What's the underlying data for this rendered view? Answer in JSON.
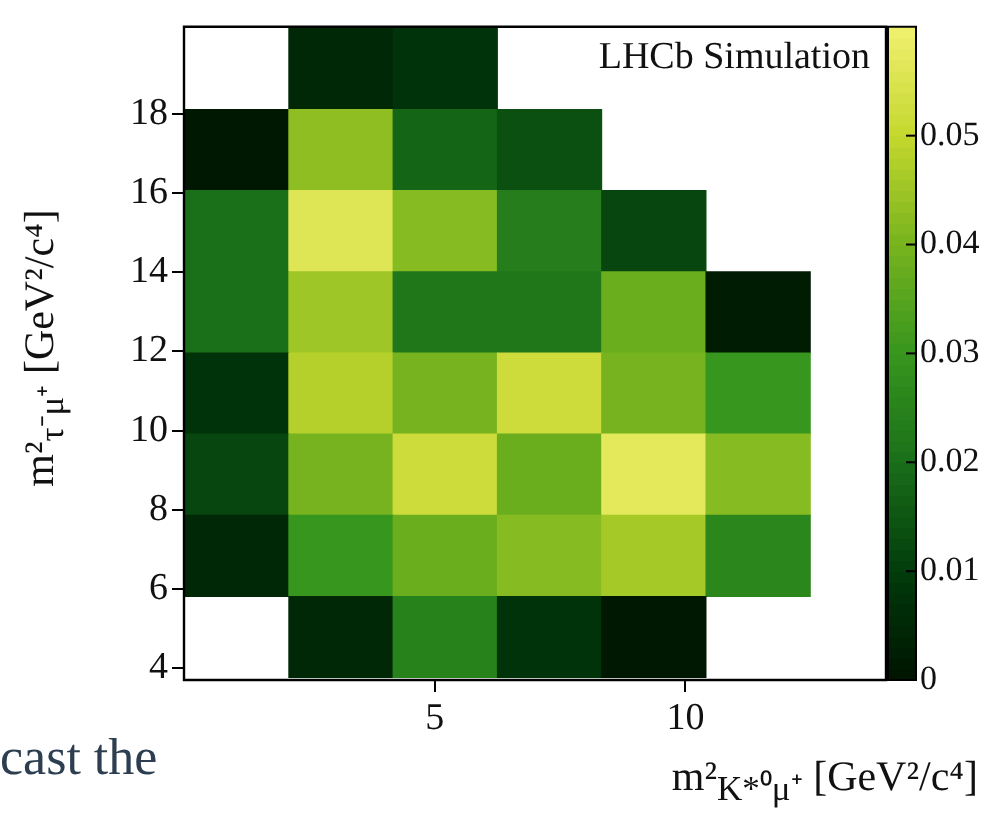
{
  "chart_data": {
    "type": "heatmap",
    "xlabel": "m²$_{K*⁰μ⁺}$ [GeV²/c⁴]",
    "ylabel": "m²$_{τ⁻μ⁺}$ [GeV²/c⁴]",
    "annotations": [
      "LHCb Simulation",
      "cast the"
    ],
    "x": [
      1.04,
      3.12,
      5.2,
      7.28,
      9.36,
      11.44
    ],
    "y": [
      19.15,
      17.1,
      15.05,
      13.0,
      10.95,
      8.9,
      6.85,
      4.8
    ],
    "cells": [
      [
        null,
        0.005,
        0.008,
        null,
        null,
        null
      ],
      [
        0.001,
        0.043,
        0.018,
        0.014,
        null,
        null
      ],
      [
        0.02,
        0.056,
        0.042,
        0.024,
        0.012,
        null
      ],
      [
        0.02,
        0.045,
        0.022,
        0.022,
        0.038,
        0.002
      ],
      [
        0.008,
        0.048,
        0.04,
        0.052,
        0.04,
        0.03
      ],
      [
        0.012,
        0.04,
        0.052,
        0.038,
        0.057,
        0.042
      ],
      [
        0.005,
        0.03,
        0.038,
        0.042,
        0.046,
        0.026
      ],
      [
        null,
        0.005,
        0.025,
        0.008,
        0.001,
        null
      ]
    ],
    "xlim": [
      0,
      14
    ],
    "xticks": [
      5,
      10
    ],
    "ylim": [
      3.7,
      20.2
    ],
    "yticks": [
      4,
      6,
      8,
      10,
      12,
      14,
      16,
      18
    ],
    "clim": [
      0,
      0.06
    ],
    "cticks": [
      0,
      0.01,
      0.02,
      0.03,
      0.04,
      0.05
    ],
    "grid": false,
    "legend": false
  }
}
